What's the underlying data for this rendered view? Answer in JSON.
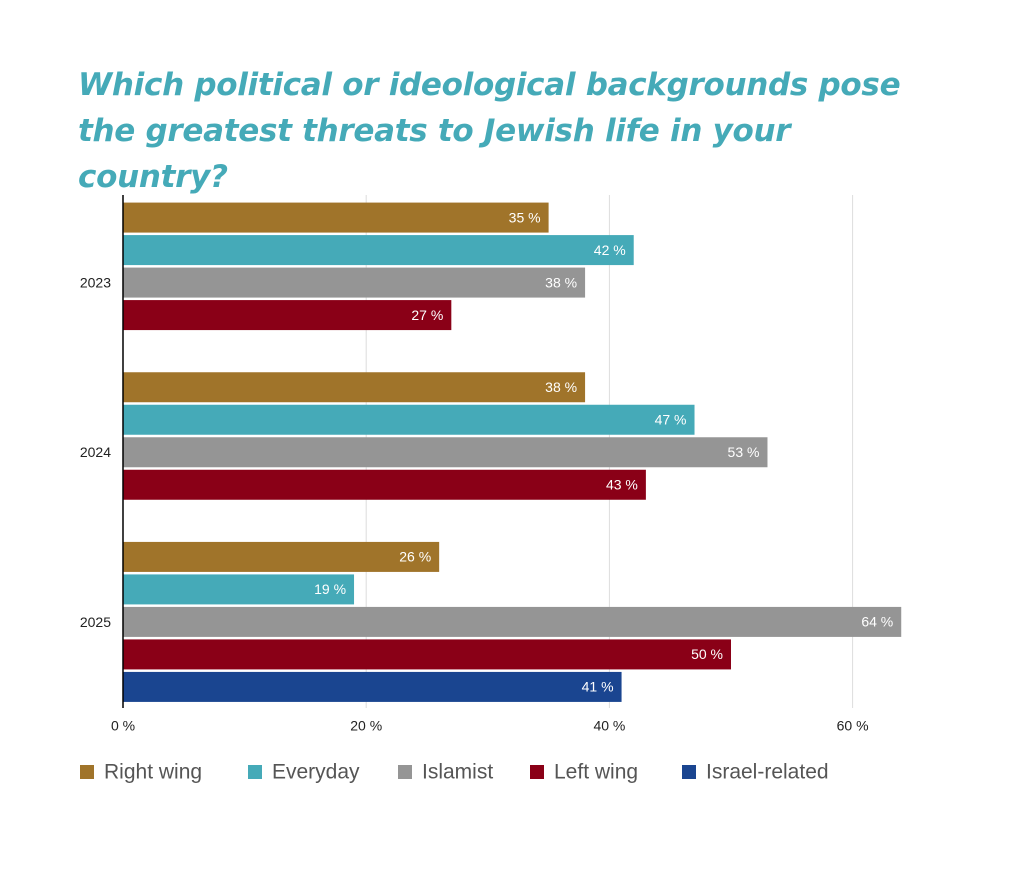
{
  "chart_data": {
    "type": "hbar",
    "title": "Which political or ideological backgrounds pose the greatest threats to Jewish life in your country?",
    "categories": [
      "2023",
      "2024",
      "2025"
    ],
    "series": [
      {
        "name": "Right wing",
        "color": "#a0742a",
        "values": [
          35,
          38,
          26
        ],
        "value_labels": [
          "35 %",
          "38 %",
          "26 %"
        ]
      },
      {
        "name": "Everyday",
        "color": "#45aab8",
        "values": [
          42,
          47,
          19
        ],
        "value_labels": [
          "42 %",
          "47 %",
          "19 %"
        ]
      },
      {
        "name": "Islamist",
        "color": "#959595",
        "values": [
          38,
          53,
          64
        ],
        "value_labels": [
          "38 %",
          "53 %",
          "64 %"
        ]
      },
      {
        "name": "Left wing",
        "color": "#8a0017",
        "values": [
          27,
          43,
          50
        ],
        "value_labels": [
          "27 %",
          "43 %",
          "50 %"
        ]
      },
      {
        "name": "Israel-related",
        "color": "#1a4590",
        "values": [
          null,
          null,
          41
        ],
        "value_labels": [
          null,
          null,
          "41 %"
        ]
      }
    ],
    "xlim": [
      0,
      65
    ],
    "xticks": [
      {
        "value": 0,
        "label": "0 %"
      },
      {
        "value": 20,
        "label": "20 %"
      },
      {
        "value": 40,
        "label": "40 %"
      },
      {
        "value": 60,
        "label": "60 %"
      }
    ],
    "grid": true,
    "legend": "bottom"
  }
}
